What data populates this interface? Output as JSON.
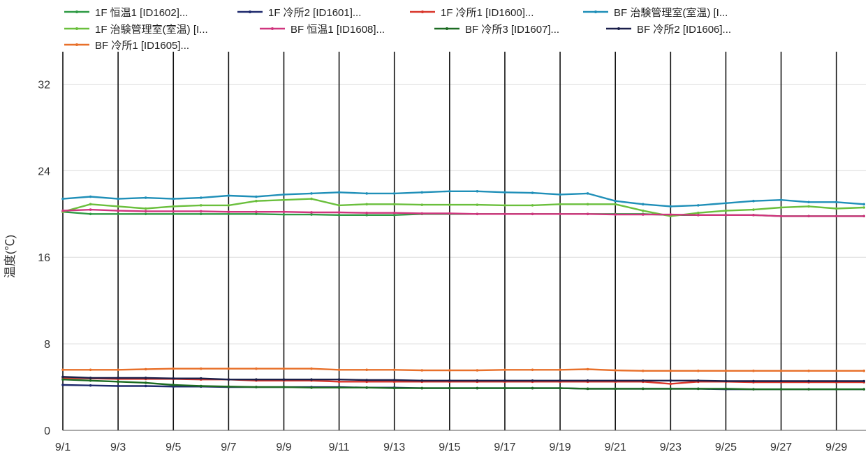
{
  "chart_data": {
    "type": "line",
    "ylabel": "温度(℃)",
    "ylim": [
      0,
      35
    ],
    "yticks": [
      0,
      8,
      16,
      24,
      32
    ],
    "x": [
      "9/1",
      "9/2",
      "9/3",
      "9/4",
      "9/5",
      "9/6",
      "9/7",
      "9/8",
      "9/9",
      "9/10",
      "9/11",
      "9/12",
      "9/13",
      "9/14",
      "9/15",
      "9/16",
      "9/17",
      "9/18",
      "9/19",
      "9/20",
      "9/21",
      "9/22",
      "9/23",
      "9/24",
      "9/25",
      "9/26",
      "9/27",
      "9/28",
      "9/29",
      "9/30"
    ],
    "xtick_labels": [
      "9/1",
      "9/3",
      "9/5",
      "9/7",
      "9/9",
      "9/11",
      "9/13",
      "9/15",
      "9/17",
      "9/19",
      "9/21",
      "9/23",
      "9/25",
      "9/27",
      "9/29"
    ],
    "grid": true,
    "legend_position": "top",
    "series": [
      {
        "name": "1F 恒温1 [ID1602]...",
        "color": "#2e9a44",
        "values": [
          20.2,
          20.0,
          20.0,
          20.0,
          20.0,
          20.0,
          20.0,
          20.0,
          19.95,
          19.95,
          19.9,
          19.9,
          19.9,
          20.0,
          20.0,
          20.0,
          20.0,
          20.0,
          20.0,
          20.0,
          20.0,
          20.0,
          19.9,
          19.9,
          19.9,
          19.9,
          19.8,
          19.8,
          19.8,
          19.8
        ]
      },
      {
        "name": "1F 冷所2 [ID1601]...",
        "color": "#1f2a6e",
        "values": [
          4.2,
          4.15,
          4.1,
          4.1,
          4.05,
          4.05,
          4.0,
          4.0,
          4.0,
          4.0,
          4.0,
          3.95,
          3.95,
          3.9,
          3.9,
          3.9,
          3.9,
          3.9,
          3.9,
          3.85,
          3.85,
          3.85,
          3.85,
          3.85,
          3.8,
          3.8,
          3.8,
          3.8,
          3.8,
          3.8
        ]
      },
      {
        "name": "1F 冷所1 [ID1600]...",
        "color": "#d9362b",
        "values": [
          4.85,
          4.8,
          4.75,
          4.75,
          4.75,
          4.7,
          4.7,
          4.6,
          4.6,
          4.6,
          4.5,
          4.5,
          4.5,
          4.5,
          4.5,
          4.5,
          4.5,
          4.5,
          4.5,
          4.5,
          4.5,
          4.5,
          4.3,
          4.5,
          4.5,
          4.45,
          4.45,
          4.45,
          4.45,
          4.45
        ]
      },
      {
        "name": "BF 治験管理室(室温) [I...",
        "color": "#1f8fb8",
        "values": [
          21.4,
          21.6,
          21.4,
          21.5,
          21.4,
          21.5,
          21.7,
          21.6,
          21.8,
          21.9,
          22.0,
          21.9,
          21.9,
          22.0,
          22.1,
          22.1,
          22.0,
          21.95,
          21.8,
          21.9,
          21.2,
          20.9,
          20.7,
          20.8,
          21.0,
          21.2,
          21.3,
          21.1,
          21.1,
          20.9
        ]
      },
      {
        "name": "1F 治験管理室(室温) [I...",
        "color": "#6abf3c",
        "values": [
          20.2,
          20.9,
          20.7,
          20.5,
          20.7,
          20.8,
          20.8,
          21.2,
          21.3,
          21.4,
          20.8,
          20.9,
          20.9,
          20.85,
          20.85,
          20.85,
          20.8,
          20.8,
          20.9,
          20.9,
          20.9,
          20.3,
          19.8,
          20.1,
          20.3,
          20.4,
          20.6,
          20.7,
          20.5,
          20.6
        ]
      },
      {
        "name": "BF 恒温1 [ID1608]...",
        "color": "#d0357e",
        "values": [
          20.3,
          20.4,
          20.3,
          20.25,
          20.25,
          20.25,
          20.2,
          20.2,
          20.2,
          20.15,
          20.15,
          20.1,
          20.1,
          20.05,
          20.05,
          20.0,
          20.0,
          20.0,
          20.0,
          20.0,
          19.95,
          19.95,
          19.95,
          19.9,
          19.9,
          19.9,
          19.8,
          19.8,
          19.8,
          19.8
        ]
      },
      {
        "name": "BF 冷所3 [ID1607]...",
        "color": "#1c6b22",
        "values": [
          4.7,
          4.6,
          4.5,
          4.4,
          4.2,
          4.1,
          4.05,
          4.0,
          4.0,
          3.95,
          3.95,
          3.95,
          3.9,
          3.9,
          3.9,
          3.9,
          3.9,
          3.9,
          3.9,
          3.85,
          3.85,
          3.85,
          3.85,
          3.85,
          3.85,
          3.8,
          3.8,
          3.8,
          3.8,
          3.8
        ]
      },
      {
        "name": "BF 冷所2 [ID1606]...",
        "color": "#1a1f4a",
        "values": [
          4.95,
          4.85,
          4.85,
          4.85,
          4.8,
          4.8,
          4.7,
          4.7,
          4.7,
          4.7,
          4.7,
          4.65,
          4.65,
          4.6,
          4.6,
          4.6,
          4.6,
          4.6,
          4.6,
          4.6,
          4.6,
          4.6,
          4.6,
          4.6,
          4.55,
          4.55,
          4.55,
          4.55,
          4.55,
          4.55
        ]
      },
      {
        "name": "BF 冷所1 [ID1605]...",
        "color": "#e8702a",
        "values": [
          5.6,
          5.6,
          5.6,
          5.65,
          5.7,
          5.7,
          5.7,
          5.7,
          5.7,
          5.7,
          5.6,
          5.6,
          5.6,
          5.55,
          5.55,
          5.55,
          5.6,
          5.6,
          5.6,
          5.65,
          5.55,
          5.5,
          5.5,
          5.5,
          5.5,
          5.5,
          5.5,
          5.5,
          5.5,
          5.5
        ]
      }
    ]
  }
}
